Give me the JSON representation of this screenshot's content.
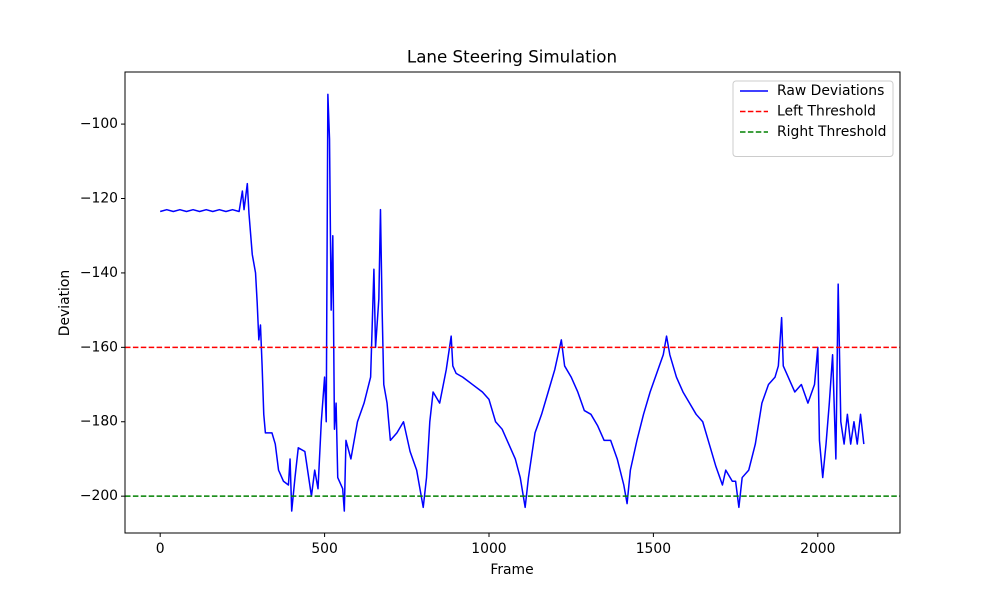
{
  "chart_data": {
    "type": "line",
    "title": "Lane Steering Simulation",
    "xlabel": "Frame",
    "ylabel": "Deviation",
    "xlim": [
      -107,
      2250
    ],
    "ylim": [
      -209.9,
      -86
    ],
    "xticks": [
      0,
      500,
      1000,
      1500,
      2000
    ],
    "yticks": [
      {
        "value": -200,
        "label": "−200"
      },
      {
        "value": -180,
        "label": "−180"
      },
      {
        "value": -160,
        "label": "−160"
      },
      {
        "value": -140,
        "label": "−140"
      },
      {
        "value": -120,
        "label": "−120"
      },
      {
        "value": -100,
        "label": "−100"
      }
    ],
    "legend": "upper right",
    "series": [
      {
        "name": "Raw Deviations",
        "color": "#0000ff",
        "x": [
          0,
          20,
          40,
          60,
          80,
          100,
          120,
          140,
          160,
          180,
          200,
          220,
          240,
          250,
          255,
          265,
          270,
          280,
          290,
          295,
          300,
          305,
          310,
          315,
          320,
          340,
          350,
          360,
          375,
          390,
          395,
          400,
          410,
          420,
          440,
          450,
          460,
          470,
          480,
          490,
          500,
          505,
          510,
          515,
          520,
          525,
          530,
          535,
          540,
          555,
          560,
          565,
          580,
          600,
          620,
          640,
          650,
          655,
          665,
          670,
          675,
          680,
          690,
          700,
          720,
          740,
          760,
          780,
          800,
          810,
          820,
          830,
          850,
          870,
          880,
          885,
          890,
          900,
          920,
          950,
          980,
          1000,
          1020,
          1040,
          1060,
          1080,
          1095,
          1110,
          1120,
          1140,
          1160,
          1180,
          1200,
          1220,
          1230,
          1250,
          1270,
          1290,
          1310,
          1330,
          1350,
          1370,
          1390,
          1410,
          1420,
          1430,
          1450,
          1470,
          1490,
          1510,
          1530,
          1540,
          1550,
          1570,
          1590,
          1610,
          1630,
          1650,
          1670,
          1690,
          1710,
          1720,
          1740,
          1750,
          1760,
          1770,
          1790,
          1810,
          1830,
          1850,
          1870,
          1880,
          1890,
          1895,
          1910,
          1930,
          1950,
          1970,
          1990,
          2000,
          2005,
          2015,
          2025,
          2035,
          2045,
          2055,
          2062,
          2070,
          2080,
          2090,
          2100,
          2110,
          2120,
          2130,
          2140
        ],
        "values": [
          -123.5,
          -123,
          -123.5,
          -123,
          -123.5,
          -123,
          -123.5,
          -123,
          -123.5,
          -123,
          -123.5,
          -123,
          -123.5,
          -118,
          -123,
          -116,
          -124,
          -135,
          -140,
          -148,
          -158,
          -154,
          -165,
          -178,
          -183,
          -183,
          -186,
          -193,
          -196,
          -197,
          -190,
          -204,
          -195,
          -187,
          -188,
          -194,
          -200,
          -193,
          -198,
          -180,
          -168,
          -180,
          -92,
          -104,
          -150,
          -130,
          -182,
          -175,
          -195,
          -198,
          -204,
          -185,
          -190,
          -180,
          -175,
          -168,
          -139,
          -160,
          -147,
          -123,
          -150,
          -170,
          -175,
          -185,
          -183,
          -180,
          -188,
          -193,
          -203,
          -195,
          -180,
          -172,
          -175,
          -166,
          -160,
          -157,
          -165,
          -167,
          -168,
          -170,
          -172,
          -174,
          -180,
          -182,
          -186,
          -190,
          -195,
          -203,
          -195,
          -183,
          -178,
          -172,
          -166,
          -158,
          -165,
          -168,
          -172,
          -177,
          -178,
          -181,
          -185,
          -185,
          -190,
          -197,
          -202,
          -193,
          -185,
          -178,
          -172,
          -167,
          -162,
          -157,
          -162,
          -168,
          -172,
          -175,
          -178,
          -180,
          -186,
          -192,
          -197,
          -193,
          -196,
          -196,
          -203,
          -195,
          -193,
          -186,
          -175,
          -170,
          -168,
          -165,
          -152,
          -165,
          -168,
          -172,
          -170,
          -175,
          -170,
          -160,
          -185,
          -195,
          -186,
          -175,
          -162,
          -190,
          -143,
          -180,
          -186,
          -178,
          -186,
          -180,
          -186,
          -178,
          -186
        ]
      }
    ],
    "thresholds": [
      {
        "name": "Left Threshold",
        "color": "#ff0000",
        "value": -160
      },
      {
        "name": "Right Threshold",
        "color": "#008000",
        "value": -200
      }
    ]
  }
}
